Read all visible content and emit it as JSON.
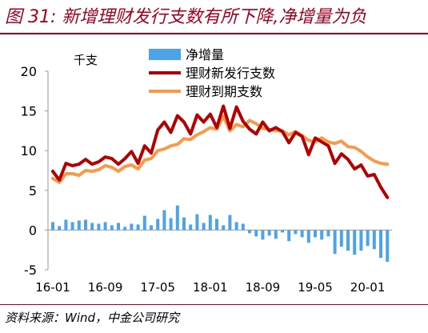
{
  "figure": {
    "title": "图 31: 新增理财发行支数有所下降,净增量为负",
    "source": "资料来源：Wind，中金公司研究"
  },
  "chart_data": {
    "type": "bar+line",
    "unit_label": "千支",
    "ylim": [
      -5,
      20
    ],
    "yticks": [
      -5,
      0,
      5,
      10,
      15,
      20
    ],
    "x_tick_labels": [
      "16-01",
      "16-09",
      "17-05",
      "18-01",
      "18-09",
      "19-05",
      "20-01"
    ],
    "x": [
      "16-01",
      "16-02",
      "16-03",
      "16-04",
      "16-05",
      "16-06",
      "16-07",
      "16-08",
      "16-09",
      "16-10",
      "16-11",
      "16-12",
      "17-01",
      "17-02",
      "17-03",
      "17-04",
      "17-05",
      "17-06",
      "17-07",
      "17-08",
      "17-09",
      "17-10",
      "17-11",
      "17-12",
      "18-01",
      "18-02",
      "18-03",
      "18-04",
      "18-05",
      "18-06",
      "18-07",
      "18-08",
      "18-09",
      "18-10",
      "18-11",
      "18-12",
      "19-01",
      "19-02",
      "19-03",
      "19-04",
      "19-05",
      "19-06",
      "19-07",
      "19-08",
      "19-09",
      "19-10",
      "19-11",
      "19-12",
      "20-01",
      "20-02",
      "20-03",
      "20-04"
    ],
    "grid": false,
    "legend_position": "top-center",
    "series": [
      {
        "name": "净增量",
        "type": "bar",
        "color": "#4DA3E8",
        "values": [
          1.0,
          0.5,
          1.3,
          1.0,
          1.2,
          1.3,
          0.9,
          0.8,
          1.0,
          0.6,
          0.9,
          0.4,
          0.8,
          0.7,
          1.8,
          0.6,
          1.4,
          2.5,
          1.5,
          3.1,
          1.6,
          0.7,
          2.0,
          0.9,
          1.9,
          1.4,
          0.6,
          1.9,
          1.0,
          0.8,
          -0.4,
          -0.8,
          -1.2,
          -0.7,
          -1.1,
          -0.3,
          -1.4,
          -0.5,
          -0.9,
          -1.6,
          -0.9,
          -1.2,
          -0.8,
          -3.0,
          -2.1,
          -2.6,
          -3.1,
          -2.6,
          -2.0,
          -2.4,
          -3.5,
          -4.0
        ]
      },
      {
        "name": "理财新发行支数",
        "type": "line",
        "color": "#B30000",
        "values": [
          7.4,
          6.3,
          8.4,
          8.1,
          8.3,
          8.9,
          8.3,
          8.6,
          9.2,
          9.0,
          8.3,
          9.0,
          9.9,
          8.4,
          10.6,
          9.7,
          12.6,
          13.6,
          12.3,
          14.4,
          13.6,
          12.1,
          14.5,
          13.6,
          14.6,
          12.9,
          15.6,
          12.8,
          15.5,
          13.7,
          12.7,
          12.1,
          13.6,
          12.5,
          12.9,
          12.4,
          11.0,
          12.3,
          11.8,
          9.5,
          11.6,
          11.1,
          10.6,
          8.4,
          9.6,
          8.9,
          7.7,
          8.2,
          6.8,
          7.0,
          5.4,
          4.1
        ]
      },
      {
        "name": "理财到期支数",
        "type": "line",
        "color": "#F79A4A",
        "values": [
          6.5,
          6.0,
          7.1,
          7.1,
          6.9,
          7.5,
          7.4,
          7.6,
          8.1,
          7.9,
          7.4,
          8.0,
          8.2,
          7.7,
          8.8,
          9.0,
          10.0,
          10.2,
          10.6,
          10.8,
          11.5,
          11.4,
          12.0,
          12.4,
          12.9,
          12.7,
          14.3,
          12.5,
          13.3,
          13.0,
          13.8,
          13.4,
          12.8,
          12.7,
          12.5,
          12.5,
          12.0,
          12.4,
          11.9,
          11.3,
          11.1,
          11.6,
          11.1,
          10.9,
          11.2,
          10.5,
          10.4,
          9.9,
          9.2,
          8.7,
          8.4,
          8.3
        ]
      }
    ]
  }
}
